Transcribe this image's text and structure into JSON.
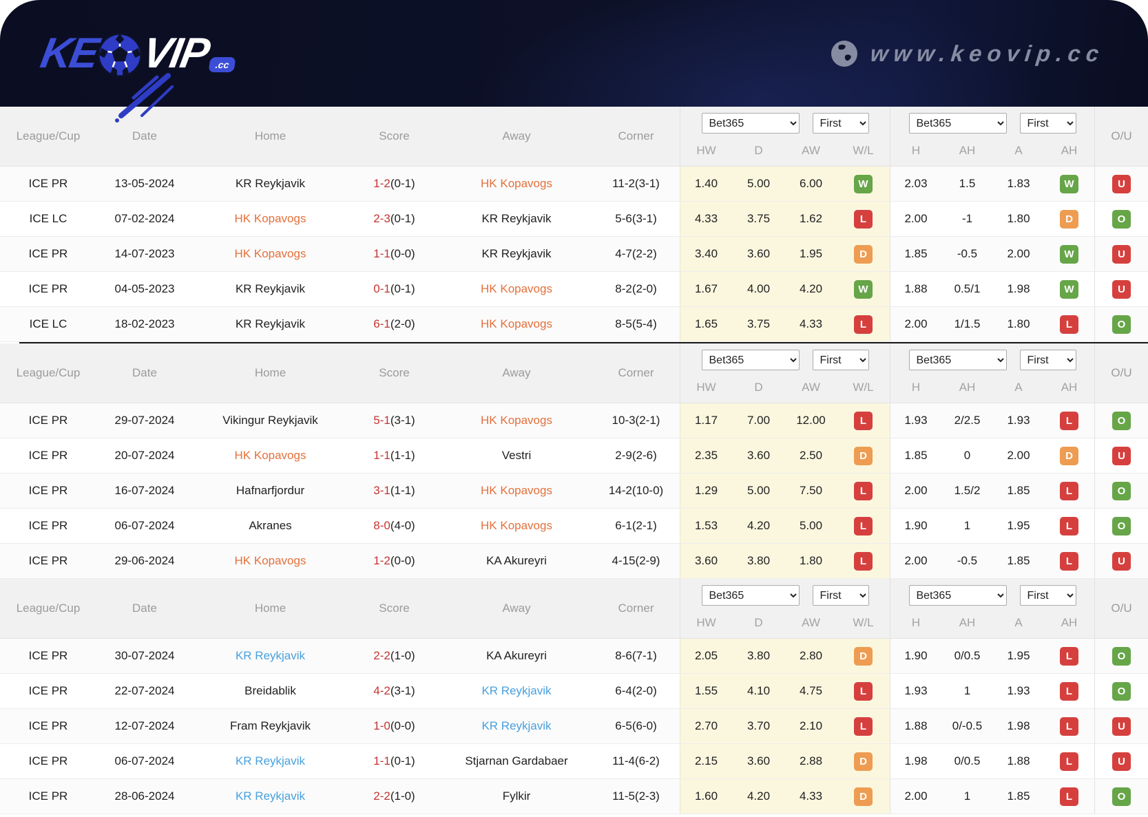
{
  "site": {
    "logo_left": "KE",
    "logo_right": "VIP",
    "logo_tld": ".cc",
    "website": "www.keovip.cc"
  },
  "controls": {
    "bookmaker": "Bet365",
    "period": "First"
  },
  "table_columns": {
    "league": "League/Cup",
    "date": "Date",
    "home": "Home",
    "score": "Score",
    "away": "Away",
    "corner": "Corner",
    "hw": "HW",
    "d": "D",
    "aw": "AW",
    "wl": "W/L",
    "h": "H",
    "ah": "AH",
    "a": "A",
    "ah2": "AH",
    "ou": "O/U"
  },
  "colors": {
    "header_bg": "#0d1128",
    "logo_blue": "#3c4ed6",
    "team_orange": "#e4703b",
    "team_blue": "#48a0dc",
    "score_red": "#c43431",
    "win_green": "#66a548",
    "draw_orange": "#ee9c51",
    "loss_red": "#d5403e",
    "odds_column_bg": "#fbf7df",
    "table_header_bg": "#f1f1f1"
  },
  "tables": [
    {
      "rows": [
        {
          "league": "ICE PR",
          "date": "13-05-2024",
          "home": "KR Reykjavik",
          "home_color": "",
          "score": "1-2",
          "score_half": "(0-1)",
          "away": "HK Kopavogs",
          "away_color": "orange",
          "corner": "11-2(3-1)",
          "odds_hw": "1.40",
          "odds_d": "5.00",
          "odds_aw": "6.00",
          "result_wl": "W",
          "ah_home": "2.03",
          "ah_line": "1.5",
          "ah_away": "1.83",
          "ah_wl": "W",
          "ou": "U"
        },
        {
          "league": "ICE LC",
          "date": "07-02-2024",
          "home": "HK Kopavogs",
          "home_color": "orange",
          "score": "2-3",
          "score_half": "(0-1)",
          "away": "KR Reykjavik",
          "away_color": "",
          "corner": "5-6(3-1)",
          "odds_hw": "4.33",
          "odds_d": "3.75",
          "odds_aw": "1.62",
          "result_wl": "L",
          "ah_home": "2.00",
          "ah_line": "-1",
          "ah_away": "1.80",
          "ah_wl": "D",
          "ou": "O"
        },
        {
          "league": "ICE PR",
          "date": "14-07-2023",
          "home": "HK Kopavogs",
          "home_color": "orange",
          "score": "1-1",
          "score_half": "(0-0)",
          "away": "KR Reykjavik",
          "away_color": "",
          "corner": "4-7(2-2)",
          "odds_hw": "3.40",
          "odds_d": "3.60",
          "odds_aw": "1.95",
          "result_wl": "D",
          "ah_home": "1.85",
          "ah_line": "-0.5",
          "ah_away": "2.00",
          "ah_wl": "W",
          "ou": "U"
        },
        {
          "league": "ICE PR",
          "date": "04-05-2023",
          "home": "KR Reykjavik",
          "home_color": "",
          "score": "0-1",
          "score_half": "(0-1)",
          "away": "HK Kopavogs",
          "away_color": "orange",
          "corner": "8-2(2-0)",
          "odds_hw": "1.67",
          "odds_d": "4.00",
          "odds_aw": "4.20",
          "result_wl": "W",
          "ah_home": "1.88",
          "ah_line": "0.5/1",
          "ah_away": "1.98",
          "ah_wl": "W",
          "ou": "U"
        },
        {
          "league": "ICE LC",
          "date": "18-02-2023",
          "home": "KR Reykjavik",
          "home_color": "",
          "score": "6-1",
          "score_half": "(2-0)",
          "away": "HK Kopavogs",
          "away_color": "orange",
          "corner": "8-5(5-4)",
          "odds_hw": "1.65",
          "odds_d": "3.75",
          "odds_aw": "4.33",
          "result_wl": "L",
          "ah_home": "2.00",
          "ah_line": "1/1.5",
          "ah_away": "1.80",
          "ah_wl": "L",
          "ou": "O"
        }
      ]
    },
    {
      "rows": [
        {
          "league": "ICE PR",
          "date": "29-07-2024",
          "home": "Vikingur Reykjavik",
          "home_color": "",
          "score": "5-1",
          "score_half": "(3-1)",
          "away": "HK Kopavogs",
          "away_color": "orange",
          "corner": "10-3(2-1)",
          "odds_hw": "1.17",
          "odds_d": "7.00",
          "odds_aw": "12.00",
          "result_wl": "L",
          "ah_home": "1.93",
          "ah_line": "2/2.5",
          "ah_away": "1.93",
          "ah_wl": "L",
          "ou": "O"
        },
        {
          "league": "ICE PR",
          "date": "20-07-2024",
          "home": "HK Kopavogs",
          "home_color": "orange",
          "score": "1-1",
          "score_half": "(1-1)",
          "away": "Vestri",
          "away_color": "",
          "corner": "2-9(2-6)",
          "odds_hw": "2.35",
          "odds_d": "3.60",
          "odds_aw": "2.50",
          "result_wl": "D",
          "ah_home": "1.85",
          "ah_line": "0",
          "ah_away": "2.00",
          "ah_wl": "D",
          "ou": "U"
        },
        {
          "league": "ICE PR",
          "date": "16-07-2024",
          "home": "Hafnarfjordur",
          "home_color": "",
          "score": "3-1",
          "score_half": "(1-1)",
          "away": "HK Kopavogs",
          "away_color": "orange",
          "corner": "14-2(10-0)",
          "odds_hw": "1.29",
          "odds_d": "5.00",
          "odds_aw": "7.50",
          "result_wl": "L",
          "ah_home": "2.00",
          "ah_line": "1.5/2",
          "ah_away": "1.85",
          "ah_wl": "L",
          "ou": "O"
        },
        {
          "league": "ICE PR",
          "date": "06-07-2024",
          "home": "Akranes",
          "home_color": "",
          "score": "8-0",
          "score_half": "(4-0)",
          "away": "HK Kopavogs",
          "away_color": "orange",
          "corner": "6-1(2-1)",
          "odds_hw": "1.53",
          "odds_d": "4.20",
          "odds_aw": "5.00",
          "result_wl": "L",
          "ah_home": "1.90",
          "ah_line": "1",
          "ah_away": "1.95",
          "ah_wl": "L",
          "ou": "O"
        },
        {
          "league": "ICE PR",
          "date": "29-06-2024",
          "home": "HK Kopavogs",
          "home_color": "orange",
          "score": "1-2",
          "score_half": "(0-0)",
          "away": "KA Akureyri",
          "away_color": "",
          "corner": "4-15(2-9)",
          "odds_hw": "3.60",
          "odds_d": "3.80",
          "odds_aw": "1.80",
          "result_wl": "L",
          "ah_home": "2.00",
          "ah_line": "-0.5",
          "ah_away": "1.85",
          "ah_wl": "L",
          "ou": "U"
        }
      ]
    },
    {
      "rows": [
        {
          "league": "ICE PR",
          "date": "30-07-2024",
          "home": "KR Reykjavik",
          "home_color": "blue",
          "score": "2-2",
          "score_half": "(1-0)",
          "away": "KA Akureyri",
          "away_color": "",
          "corner": "8-6(7-1)",
          "odds_hw": "2.05",
          "odds_d": "3.80",
          "odds_aw": "2.80",
          "result_wl": "D",
          "ah_home": "1.90",
          "ah_line": "0/0.5",
          "ah_away": "1.95",
          "ah_wl": "L",
          "ou": "O"
        },
        {
          "league": "ICE PR",
          "date": "22-07-2024",
          "home": "Breidablik",
          "home_color": "",
          "score": "4-2",
          "score_half": "(3-1)",
          "away": "KR Reykjavik",
          "away_color": "blue",
          "corner": "6-4(2-0)",
          "odds_hw": "1.55",
          "odds_d": "4.10",
          "odds_aw": "4.75",
          "result_wl": "L",
          "ah_home": "1.93",
          "ah_line": "1",
          "ah_away": "1.93",
          "ah_wl": "L",
          "ou": "O"
        },
        {
          "league": "ICE PR",
          "date": "12-07-2024",
          "home": "Fram Reykjavik",
          "home_color": "",
          "score": "1-0",
          "score_half": "(0-0)",
          "away": "KR Reykjavik",
          "away_color": "blue",
          "corner": "6-5(6-0)",
          "odds_hw": "2.70",
          "odds_d": "3.70",
          "odds_aw": "2.10",
          "result_wl": "L",
          "ah_home": "1.88",
          "ah_line": "0/-0.5",
          "ah_away": "1.98",
          "ah_wl": "L",
          "ou": "U"
        },
        {
          "league": "ICE PR",
          "date": "06-07-2024",
          "home": "KR Reykjavik",
          "home_color": "blue",
          "score": "1-1",
          "score_half": "(0-1)",
          "away": "Stjarnan Gardabaer",
          "away_color": "",
          "corner": "11-4(6-2)",
          "odds_hw": "2.15",
          "odds_d": "3.60",
          "odds_aw": "2.88",
          "result_wl": "D",
          "ah_home": "1.98",
          "ah_line": "0/0.5",
          "ah_away": "1.88",
          "ah_wl": "L",
          "ou": "U"
        },
        {
          "league": "ICE PR",
          "date": "28-06-2024",
          "home": "KR Reykjavik",
          "home_color": "blue",
          "score": "2-2",
          "score_half": "(1-0)",
          "away": "Fylkir",
          "away_color": "",
          "corner": "11-5(2-3)",
          "odds_hw": "1.60",
          "odds_d": "4.20",
          "odds_aw": "4.33",
          "result_wl": "D",
          "ah_home": "2.00",
          "ah_line": "1",
          "ah_away": "1.85",
          "ah_wl": "L",
          "ou": "O"
        }
      ]
    }
  ]
}
